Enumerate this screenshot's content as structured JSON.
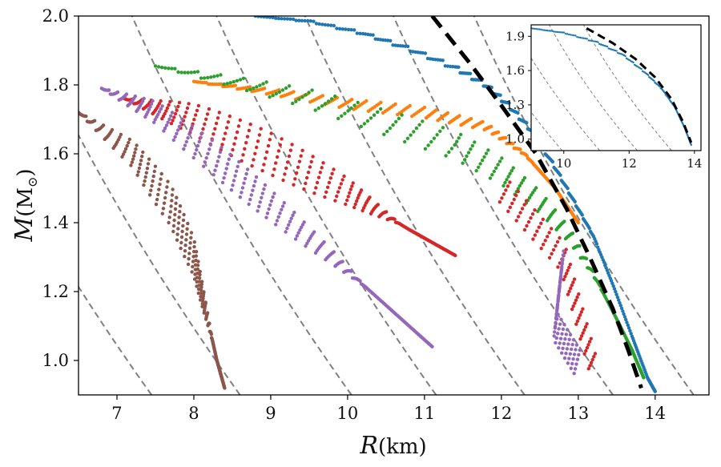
{
  "chart_data": {
    "type": "scatter",
    "title": "",
    "xlabel": {
      "symbol": "R",
      "unit": "(km)"
    },
    "ylabel": {
      "symbol": "M",
      "unit": "(M",
      "sub": "⊙",
      "close": ")"
    },
    "xlim": [
      6.5,
      14.7
    ],
    "ylim": [
      0.9,
      2.0
    ],
    "xticks": [
      "7",
      "8",
      "9",
      "10",
      "11",
      "12",
      "13",
      "14"
    ],
    "yticks": [
      "1.0",
      "1.2",
      "1.4",
      "1.6",
      "1.8",
      "2.0"
    ],
    "series": [
      {
        "name": "blue",
        "color": "#1f77b4",
        "points": [
          [
            8.8,
            2.0
          ],
          [
            9.5,
            1.985
          ],
          [
            10.2,
            1.95
          ],
          [
            10.8,
            1.905
          ],
          [
            11.4,
            1.85
          ],
          [
            11.8,
            1.8
          ],
          [
            12.1,
            1.74
          ],
          [
            12.4,
            1.665
          ],
          [
            12.7,
            1.56
          ],
          [
            12.95,
            1.46
          ],
          [
            13.2,
            1.36
          ],
          [
            13.45,
            1.22
          ],
          [
            13.7,
            1.07
          ],
          [
            13.9,
            0.95
          ],
          [
            14.0,
            0.91
          ]
        ],
        "thickness": 0.015
      },
      {
        "name": "orange",
        "color": "#ff7f0e",
        "points": [
          [
            8.0,
            1.81
          ],
          [
            9.0,
            1.78
          ],
          [
            10.0,
            1.745
          ],
          [
            11.0,
            1.72
          ],
          [
            11.8,
            1.68
          ],
          [
            12.3,
            1.6
          ],
          [
            12.7,
            1.5
          ],
          [
            13.0,
            1.4
          ]
        ],
        "thickness": 0.03
      },
      {
        "name": "green",
        "color": "#2ca02c",
        "points": [
          [
            7.5,
            1.855
          ],
          [
            8.5,
            1.81
          ],
          [
            9.5,
            1.76
          ],
          [
            10.5,
            1.69
          ],
          [
            11.4,
            1.625
          ],
          [
            12.0,
            1.55
          ],
          [
            12.5,
            1.46
          ],
          [
            12.9,
            1.36
          ],
          [
            13.2,
            1.25
          ],
          [
            13.5,
            1.12
          ],
          [
            13.7,
            1.03
          ],
          [
            13.85,
            0.95
          ]
        ],
        "thickness": 0.08
      },
      {
        "name": "red",
        "color": "#d62728",
        "points": [
          [
            7.1,
            1.76
          ],
          [
            8.0,
            1.7
          ],
          [
            9.0,
            1.6
          ],
          [
            10.0,
            1.49
          ],
          [
            10.8,
            1.38
          ],
          [
            11.4,
            1.305
          ]
        ],
        "thickness": 0.12,
        "extra": [
          [
            12.0,
            1.5
          ],
          [
            12.8,
            1.3
          ],
          [
            13.2,
            0.98
          ]
        ]
      },
      {
        "name": "purple",
        "color": "#9467bd",
        "points": [
          [
            6.8,
            1.79
          ],
          [
            7.5,
            1.72
          ],
          [
            8.3,
            1.58
          ],
          [
            9.0,
            1.45
          ],
          [
            9.8,
            1.3
          ],
          [
            10.5,
            1.16
          ],
          [
            11.1,
            1.04
          ]
        ],
        "thickness": 0.1,
        "extra": [
          [
            12.8,
            1.3
          ],
          [
            12.7,
            1.1
          ],
          [
            13.0,
            0.99
          ]
        ]
      },
      {
        "name": "brown",
        "color": "#8c564b",
        "points": [
          [
            6.5,
            1.72
          ],
          [
            7.2,
            1.6
          ],
          [
            7.7,
            1.45
          ],
          [
            8.0,
            1.3
          ],
          [
            8.15,
            1.15
          ],
          [
            8.3,
            1.0
          ],
          [
            8.4,
            0.92
          ]
        ],
        "thickness": 0.12
      }
    ],
    "reference_curve": {
      "style": "black-dashed",
      "points": [
        [
          11.1,
          2.0
        ],
        [
          11.6,
          1.86
        ],
        [
          12.0,
          1.74
        ],
        [
          12.45,
          1.6
        ],
        [
          12.85,
          1.44
        ],
        [
          13.15,
          1.3
        ],
        [
          13.45,
          1.15
        ],
        [
          13.65,
          1.03
        ],
        [
          13.82,
          0.92
        ]
      ]
    },
    "background_curves": {
      "style": "gray-dashed",
      "x_at_base": [
        7.45,
        8.6,
        10.05,
        11.15,
        12.3,
        13.45,
        14.5
      ]
    },
    "inset": {
      "xlim": [
        9.0,
        14.2
      ],
      "ylim": [
        0.9,
        2.0
      ],
      "xticks": [
        "10",
        "12",
        "14"
      ],
      "yticks": [
        "1.0",
        "1.3",
        "1.6",
        "1.9"
      ],
      "series": [
        {
          "name": "blue",
          "color": "#1f77b4",
          "points": [
            [
              9.0,
              1.97
            ],
            [
              10.0,
              1.93
            ],
            [
              11.0,
              1.85
            ],
            [
              11.8,
              1.74
            ],
            [
              12.5,
              1.58
            ],
            [
              13.0,
              1.44
            ],
            [
              13.4,
              1.28
            ],
            [
              13.7,
              1.1
            ],
            [
              13.9,
              0.95
            ]
          ]
        }
      ],
      "reference_curve": {
        "points": [
          [
            10.7,
            1.97
          ],
          [
            11.5,
            1.84
          ],
          [
            12.2,
            1.7
          ],
          [
            12.8,
            1.54
          ],
          [
            13.3,
            1.35
          ],
          [
            13.65,
            1.15
          ],
          [
            13.9,
            0.97
          ]
        ]
      }
    }
  }
}
